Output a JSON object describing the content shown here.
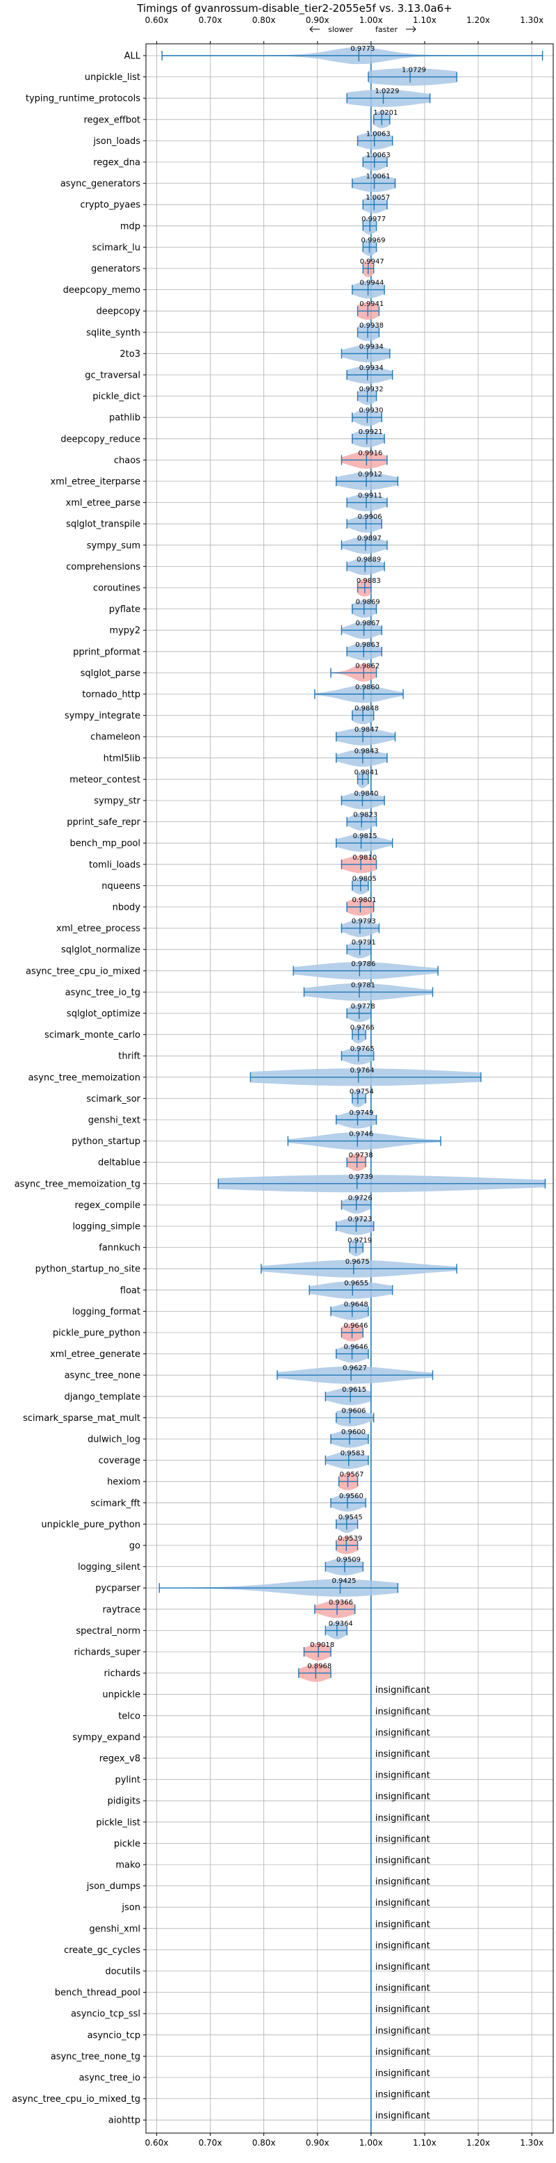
{
  "chart_data": {
    "type": "violin",
    "title": "Timings of gvanrossum-disable_tier2-2055e5f vs. 3.13.0a6+",
    "annotations": {
      "slower": "slower",
      "faster": "faster"
    },
    "xlim": [
      0.58,
      1.34
    ],
    "grid": true,
    "xticks": [
      {
        "value": 0.6,
        "label": "0.60x"
      },
      {
        "value": 0.7,
        "label": "0.70x"
      },
      {
        "value": 0.8,
        "label": "0.80x"
      },
      {
        "value": 0.9,
        "label": "0.90x"
      },
      {
        "value": 1.0,
        "label": "1.00x"
      },
      {
        "value": 1.1,
        "label": "1.10x"
      },
      {
        "value": 1.2,
        "label": "1.20x"
      },
      {
        "value": 1.3,
        "label": "1.30x"
      }
    ],
    "insignificant_text": "insignificant",
    "colors": {
      "normal": "#1f77b4",
      "violin": "#a9c8e6",
      "slow_violin": "#f4aaaa",
      "grid": "#b0b0b0"
    },
    "benchmarks": [
      {
        "name": "ALL",
        "value": 0.9773,
        "label": "0.9773",
        "low": 0.61,
        "high": 1.32,
        "spread": 0.05,
        "slow": false
      },
      {
        "name": "unpickle_list",
        "value": 1.0729,
        "label": "1.0729",
        "low": 0.995,
        "high": 1.16,
        "spread": 0.09,
        "slow": false
      },
      {
        "name": "typing_runtime_protocols",
        "value": 1.0229,
        "label": "1.0229",
        "low": 0.955,
        "high": 1.11,
        "spread": 0.07,
        "slow": false
      },
      {
        "name": "regex_effbot",
        "value": 1.0201,
        "label": "1.0201",
        "low": 1.005,
        "high": 1.035,
        "spread": 0.015,
        "slow": false
      },
      {
        "name": "json_loads",
        "value": 1.0063,
        "label": "1.0063",
        "low": 0.975,
        "high": 1.04,
        "spread": 0.03,
        "slow": false
      },
      {
        "name": "regex_dna",
        "value": 1.0063,
        "label": "1.0063",
        "low": 0.985,
        "high": 1.03,
        "spread": 0.02,
        "slow": false
      },
      {
        "name": "async_generators",
        "value": 1.0061,
        "label": "1.0061",
        "low": 0.965,
        "high": 1.045,
        "spread": 0.035,
        "slow": false
      },
      {
        "name": "crypto_pyaes",
        "value": 1.0057,
        "label": "1.0057",
        "low": 0.985,
        "high": 1.03,
        "spread": 0.02,
        "slow": false
      },
      {
        "name": "mdp",
        "value": 0.9977,
        "label": "0.9977",
        "low": 0.985,
        "high": 1.01,
        "spread": 0.012,
        "slow": false
      },
      {
        "name": "scimark_lu",
        "value": 0.9969,
        "label": "0.9969",
        "low": 0.985,
        "high": 1.01,
        "spread": 0.012,
        "slow": false
      },
      {
        "name": "generators",
        "value": 0.9947,
        "label": "0.9947",
        "low": 0.985,
        "high": 1.005,
        "spread": 0.01,
        "slow": true
      },
      {
        "name": "deepcopy_memo",
        "value": 0.9944,
        "label": "0.9944",
        "low": 0.965,
        "high": 1.025,
        "spread": 0.025,
        "slow": false
      },
      {
        "name": "deepcopy",
        "value": 0.9941,
        "label": "0.9941",
        "low": 0.975,
        "high": 1.015,
        "spread": 0.02,
        "slow": true
      },
      {
        "name": "sqlite_synth",
        "value": 0.9938,
        "label": "0.9938",
        "low": 0.975,
        "high": 1.015,
        "spread": 0.02,
        "slow": false
      },
      {
        "name": "2to3",
        "value": 0.9934,
        "label": "0.9934",
        "low": 0.945,
        "high": 1.035,
        "spread": 0.035,
        "slow": false
      },
      {
        "name": "gc_traversal",
        "value": 0.9934,
        "label": "0.9934",
        "low": 0.955,
        "high": 1.04,
        "spread": 0.035,
        "slow": false
      },
      {
        "name": "pickle_dict",
        "value": 0.9932,
        "label": "0.9932",
        "low": 0.975,
        "high": 1.01,
        "spread": 0.015,
        "slow": false
      },
      {
        "name": "pathlib",
        "value": 0.993,
        "label": "0.9930",
        "low": 0.965,
        "high": 1.02,
        "spread": 0.02,
        "slow": false
      },
      {
        "name": "deepcopy_reduce",
        "value": 0.9921,
        "label": "0.9921",
        "low": 0.965,
        "high": 1.025,
        "spread": 0.025,
        "slow": false
      },
      {
        "name": "chaos",
        "value": 0.9916,
        "label": "0.9916",
        "low": 0.945,
        "high": 1.03,
        "spread": 0.03,
        "slow": true
      },
      {
        "name": "xml_etree_iterparse",
        "value": 0.9912,
        "label": "0.9912",
        "low": 0.935,
        "high": 1.05,
        "spread": 0.045,
        "slow": false
      },
      {
        "name": "xml_etree_parse",
        "value": 0.9911,
        "label": "0.9911",
        "low": 0.955,
        "high": 1.03,
        "spread": 0.03,
        "slow": false
      },
      {
        "name": "sqlglot_transpile",
        "value": 0.9906,
        "label": "0.9906",
        "low": 0.955,
        "high": 1.02,
        "spread": 0.025,
        "slow": false
      },
      {
        "name": "sympy_sum",
        "value": 0.9897,
        "label": "0.9897",
        "low": 0.945,
        "high": 1.03,
        "spread": 0.03,
        "slow": false
      },
      {
        "name": "comprehensions",
        "value": 0.9889,
        "label": "0.9889",
        "low": 0.955,
        "high": 1.025,
        "spread": 0.025,
        "slow": false
      },
      {
        "name": "coroutines",
        "value": 0.9883,
        "label": "0.9883",
        "low": 0.975,
        "high": 1.0,
        "spread": 0.015,
        "slow": true
      },
      {
        "name": "pyflate",
        "value": 0.9869,
        "label": "0.9869",
        "low": 0.965,
        "high": 1.01,
        "spread": 0.02,
        "slow": false
      },
      {
        "name": "mypy2",
        "value": 0.9867,
        "label": "0.9867",
        "low": 0.945,
        "high": 1.02,
        "spread": 0.025,
        "slow": false
      },
      {
        "name": "pprint_pformat",
        "value": 0.9863,
        "label": "0.9863",
        "low": 0.955,
        "high": 1.02,
        "spread": 0.025,
        "slow": false
      },
      {
        "name": "sqlglot_parse",
        "value": 0.9862,
        "label": "0.9862",
        "low": 0.925,
        "high": 1.01,
        "spread": 0.02,
        "slow": true
      },
      {
        "name": "tornado_http",
        "value": 0.986,
        "label": "0.9860",
        "low": 0.895,
        "high": 1.06,
        "spread": 0.04,
        "slow": false
      },
      {
        "name": "sympy_integrate",
        "value": 0.9848,
        "label": "0.9848",
        "low": 0.965,
        "high": 1.005,
        "spread": 0.02,
        "slow": false
      },
      {
        "name": "chameleon",
        "value": 0.9847,
        "label": "0.9847",
        "low": 0.935,
        "high": 1.045,
        "spread": 0.04,
        "slow": false
      },
      {
        "name": "html5lib",
        "value": 0.9843,
        "label": "0.9843",
        "low": 0.935,
        "high": 1.03,
        "spread": 0.035,
        "slow": false
      },
      {
        "name": "meteor_contest",
        "value": 0.9841,
        "label": "0.9841",
        "low": 0.975,
        "high": 0.995,
        "spread": 0.01,
        "slow": false
      },
      {
        "name": "sympy_str",
        "value": 0.984,
        "label": "0.9840",
        "low": 0.945,
        "high": 1.025,
        "spread": 0.03,
        "slow": false
      },
      {
        "name": "pprint_safe_repr",
        "value": 0.9823,
        "label": "0.9823",
        "low": 0.955,
        "high": 1.01,
        "spread": 0.02,
        "slow": false
      },
      {
        "name": "bench_mp_pool",
        "value": 0.9815,
        "label": "0.9815",
        "low": 0.935,
        "high": 1.04,
        "spread": 0.035,
        "slow": false
      },
      {
        "name": "tomli_loads",
        "value": 0.981,
        "label": "0.9810",
        "low": 0.945,
        "high": 1.01,
        "spread": 0.03,
        "slow": true
      },
      {
        "name": "nqueens",
        "value": 0.9805,
        "label": "0.9805",
        "low": 0.965,
        "high": 0.995,
        "spread": 0.015,
        "slow": false
      },
      {
        "name": "nbody",
        "value": 0.9801,
        "label": "0.9801",
        "low": 0.955,
        "high": 1.005,
        "spread": 0.025,
        "slow": true
      },
      {
        "name": "xml_etree_process",
        "value": 0.9793,
        "label": "0.9793",
        "low": 0.945,
        "high": 1.015,
        "spread": 0.025,
        "slow": false
      },
      {
        "name": "sqlglot_normalize",
        "value": 0.9791,
        "label": "0.9791",
        "low": 0.955,
        "high": 1.0,
        "spread": 0.02,
        "slow": false
      },
      {
        "name": "async_tree_cpu_io_mixed",
        "value": 0.9786,
        "label": "0.9786",
        "low": 0.855,
        "high": 1.125,
        "spread": 0.09,
        "slow": false
      },
      {
        "name": "async_tree_io_tg",
        "value": 0.9781,
        "label": "0.9781",
        "low": 0.875,
        "high": 1.115,
        "spread": 0.08,
        "slow": false
      },
      {
        "name": "sqlglot_optimize",
        "value": 0.9778,
        "label": "0.9778",
        "low": 0.955,
        "high": 1.0,
        "spread": 0.02,
        "slow": false
      },
      {
        "name": "scimark_monte_carlo",
        "value": 0.9766,
        "label": "0.9766",
        "low": 0.965,
        "high": 0.99,
        "spread": 0.012,
        "slow": false
      },
      {
        "name": "thrift",
        "value": 0.9765,
        "label": "0.9765",
        "low": 0.945,
        "high": 1.005,
        "spread": 0.025,
        "slow": false
      },
      {
        "name": "async_tree_memoization",
        "value": 0.9764,
        "label": "0.9764",
        "low": 0.775,
        "high": 1.205,
        "spread": 0.2,
        "slow": false
      },
      {
        "name": "scimark_sor",
        "value": 0.9754,
        "label": "0.9754",
        "low": 0.965,
        "high": 0.99,
        "spread": 0.012,
        "slow": false
      },
      {
        "name": "genshi_text",
        "value": 0.9749,
        "label": "0.9749",
        "low": 0.935,
        "high": 1.01,
        "spread": 0.03,
        "slow": false
      },
      {
        "name": "python_startup",
        "value": 0.9746,
        "label": "0.9746",
        "low": 0.845,
        "high": 1.13,
        "spread": 0.07,
        "slow": false
      },
      {
        "name": "deltablue",
        "value": 0.9738,
        "label": "0.9738",
        "low": 0.955,
        "high": 0.99,
        "spread": 0.015,
        "slow": true
      },
      {
        "name": "async_tree_memoization_tg",
        "value": 0.9739,
        "label": "0.9739",
        "low": 0.715,
        "high": 1.325,
        "spread": 0.26,
        "slow": false
      },
      {
        "name": "regex_compile",
        "value": 0.9726,
        "label": "0.9726",
        "low": 0.945,
        "high": 1.0,
        "spread": 0.02,
        "slow": false
      },
      {
        "name": "logging_simple",
        "value": 0.9723,
        "label": "0.9723",
        "low": 0.935,
        "high": 1.005,
        "spread": 0.03,
        "slow": false
      },
      {
        "name": "fannkuch",
        "value": 0.9719,
        "label": "0.9719",
        "low": 0.96,
        "high": 0.985,
        "spread": 0.012,
        "slow": false
      },
      {
        "name": "python_startup_no_site",
        "value": 0.9675,
        "label": "0.9675",
        "low": 0.795,
        "high": 1.16,
        "spread": 0.11,
        "slow": false
      },
      {
        "name": "float",
        "value": 0.9655,
        "label": "0.9655",
        "low": 0.885,
        "high": 1.04,
        "spread": 0.06,
        "slow": false
      },
      {
        "name": "logging_format",
        "value": 0.9648,
        "label": "0.9648",
        "low": 0.925,
        "high": 0.995,
        "spread": 0.03,
        "slow": false
      },
      {
        "name": "pickle_pure_python",
        "value": 0.9646,
        "label": "0.9646",
        "low": 0.945,
        "high": 0.985,
        "spread": 0.02,
        "slow": true
      },
      {
        "name": "xml_etree_generate",
        "value": 0.9646,
        "label": "0.9646",
        "low": 0.935,
        "high": 0.995,
        "spread": 0.025,
        "slow": false
      },
      {
        "name": "async_tree_none",
        "value": 0.9627,
        "label": "0.9627",
        "low": 0.825,
        "high": 1.115,
        "spread": 0.09,
        "slow": false
      },
      {
        "name": "django_template",
        "value": 0.9615,
        "label": "0.9615",
        "low": 0.915,
        "high": 1.0,
        "spread": 0.035,
        "slow": false
      },
      {
        "name": "scimark_sparse_mat_mult",
        "value": 0.9606,
        "label": "0.9606",
        "low": 0.935,
        "high": 1.005,
        "spread": 0.03,
        "slow": false
      },
      {
        "name": "dulwich_log",
        "value": 0.96,
        "label": "0.9600",
        "low": 0.925,
        "high": 0.995,
        "spread": 0.03,
        "slow": false
      },
      {
        "name": "coverage",
        "value": 0.9583,
        "label": "0.9583",
        "low": 0.915,
        "high": 0.995,
        "spread": 0.03,
        "slow": false
      },
      {
        "name": "hexiom",
        "value": 0.9567,
        "label": "0.9567",
        "low": 0.94,
        "high": 0.975,
        "spread": 0.018,
        "slow": true
      },
      {
        "name": "scimark_fft",
        "value": 0.956,
        "label": "0.9560",
        "low": 0.925,
        "high": 0.99,
        "spread": 0.025,
        "slow": false
      },
      {
        "name": "unpickle_pure_python",
        "value": 0.9545,
        "label": "0.9545",
        "low": 0.935,
        "high": 0.975,
        "spread": 0.015,
        "slow": false
      },
      {
        "name": "go",
        "value": 0.9539,
        "label": "0.9539",
        "low": 0.935,
        "high": 0.975,
        "spread": 0.02,
        "slow": true
      },
      {
        "name": "logging_silent",
        "value": 0.9509,
        "label": "0.9509",
        "low": 0.915,
        "high": 0.985,
        "spread": 0.03,
        "slow": false
      },
      {
        "name": "pycparser",
        "value": 0.9425,
        "label": "0.9425",
        "low": 0.605,
        "high": 1.05,
        "spread": 0.1,
        "slow": false
      },
      {
        "name": "raytrace",
        "value": 0.9366,
        "label": "0.9366",
        "low": 0.895,
        "high": 0.97,
        "spread": 0.03,
        "slow": true
      },
      {
        "name": "spectral_norm",
        "value": 0.9364,
        "label": "0.9364",
        "low": 0.915,
        "high": 0.955,
        "spread": 0.015,
        "slow": false
      },
      {
        "name": "richards_super",
        "value": 0.9018,
        "label": "0.9018",
        "low": 0.875,
        "high": 0.925,
        "spread": 0.02,
        "slow": true
      },
      {
        "name": "richards",
        "value": 0.8968,
        "label": "0.8968",
        "low": 0.865,
        "high": 0.925,
        "spread": 0.025,
        "slow": true
      },
      {
        "name": "unpickle",
        "value": null,
        "label": "",
        "insignificant": true
      },
      {
        "name": "telco",
        "value": null,
        "label": "",
        "insignificant": true
      },
      {
        "name": "sympy_expand",
        "value": null,
        "label": "",
        "insignificant": true
      },
      {
        "name": "regex_v8",
        "value": null,
        "label": "",
        "insignificant": true
      },
      {
        "name": "pylint",
        "value": null,
        "label": "",
        "insignificant": true
      },
      {
        "name": "pidigits",
        "value": null,
        "label": "",
        "insignificant": true
      },
      {
        "name": "pickle_list",
        "value": null,
        "label": "",
        "insignificant": true
      },
      {
        "name": "pickle",
        "value": null,
        "label": "",
        "insignificant": true
      },
      {
        "name": "mako",
        "value": null,
        "label": "",
        "insignificant": true
      },
      {
        "name": "json_dumps",
        "value": null,
        "label": "",
        "insignificant": true
      },
      {
        "name": "json",
        "value": null,
        "label": "",
        "insignificant": true
      },
      {
        "name": "genshi_xml",
        "value": null,
        "label": "",
        "insignificant": true
      },
      {
        "name": "create_gc_cycles",
        "value": null,
        "label": "",
        "insignificant": true
      },
      {
        "name": "docutils",
        "value": null,
        "label": "",
        "insignificant": true
      },
      {
        "name": "bench_thread_pool",
        "value": null,
        "label": "",
        "insignificant": true
      },
      {
        "name": "asyncio_tcp_ssl",
        "value": null,
        "label": "",
        "insignificant": true
      },
      {
        "name": "asyncio_tcp",
        "value": null,
        "label": "",
        "insignificant": true
      },
      {
        "name": "async_tree_none_tg",
        "value": null,
        "label": "",
        "insignificant": true
      },
      {
        "name": "async_tree_io",
        "value": null,
        "label": "",
        "insignificant": true
      },
      {
        "name": "async_tree_cpu_io_mixed_tg",
        "value": null,
        "label": "",
        "insignificant": true
      },
      {
        "name": "aiohttp",
        "value": null,
        "label": "",
        "insignificant": true
      }
    ]
  }
}
